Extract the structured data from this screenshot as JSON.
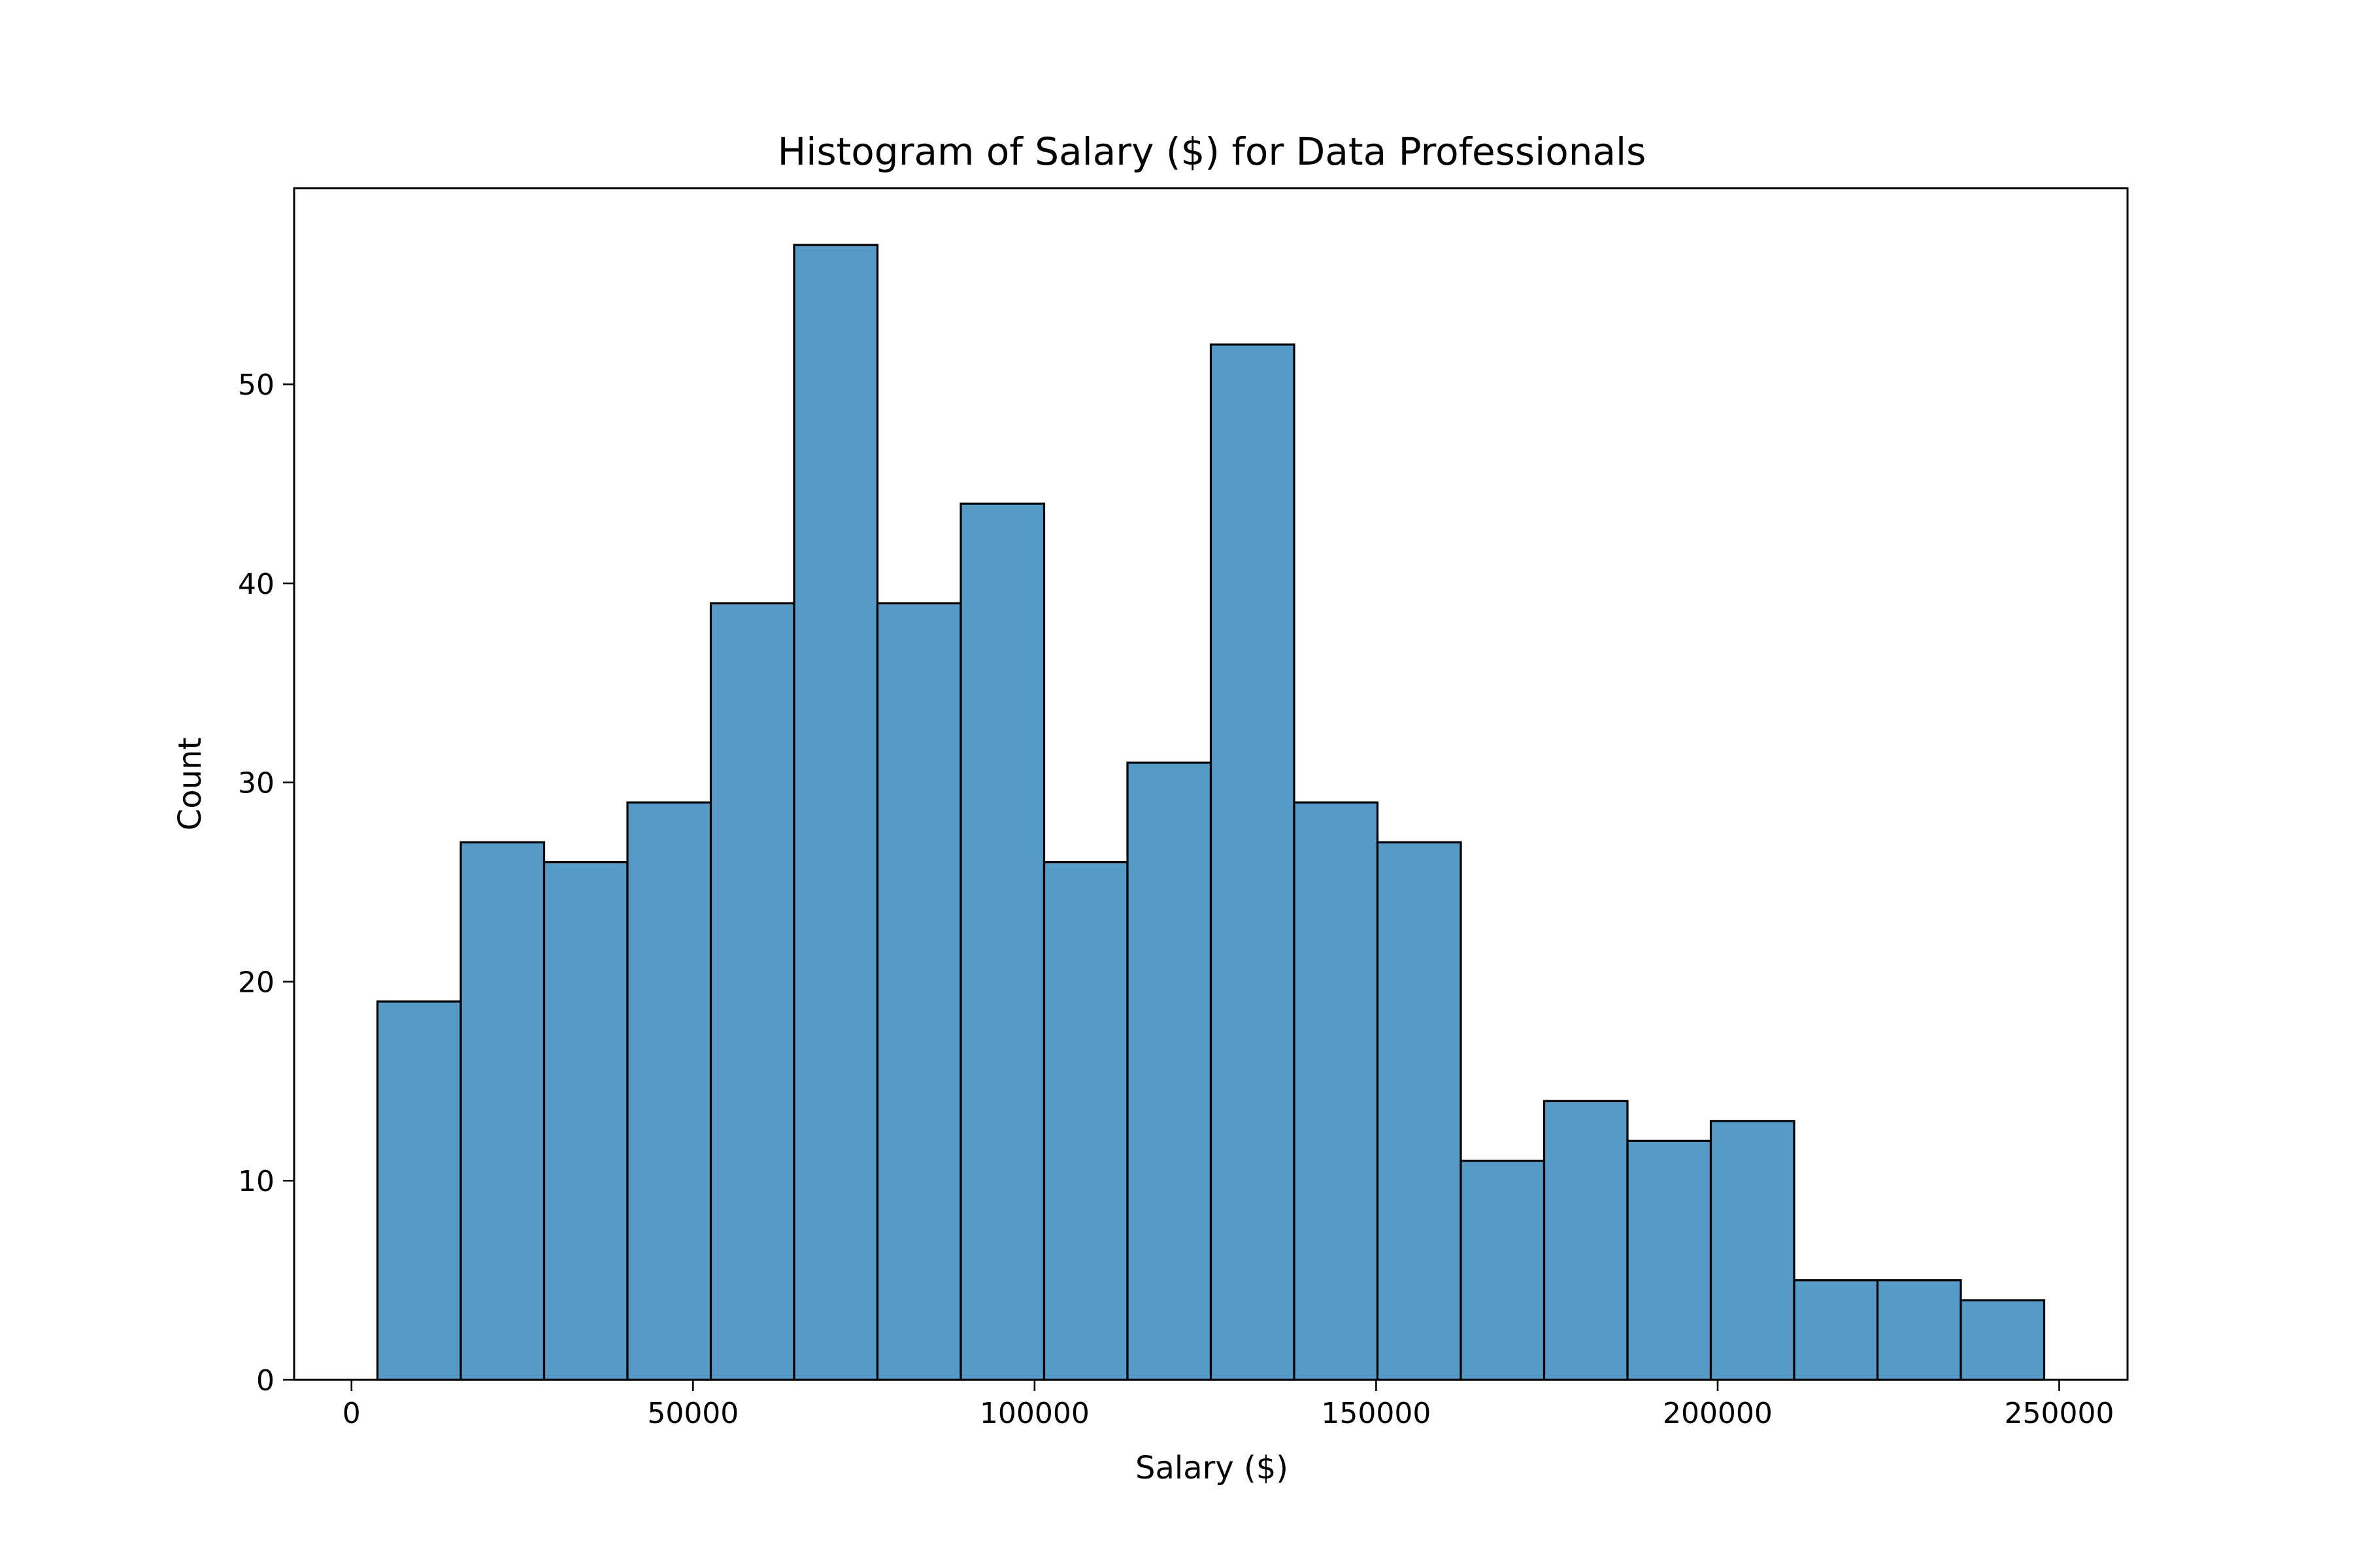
{
  "chart_data": {
    "type": "bar",
    "subtype": "histogram",
    "title": "Histogram of Salary ($) for Data Professionals",
    "xlabel": "Salary ($)",
    "ylabel": "Count",
    "bin_edges": [
      3800,
      16000,
      28200,
      40400,
      52600,
      64800,
      77000,
      89200,
      101400,
      113600,
      125800,
      138000,
      150200,
      162400,
      174600,
      186800,
      199000,
      211200,
      223400,
      235600,
      247800
    ],
    "values": [
      19,
      27,
      26,
      29,
      39,
      57,
      39,
      44,
      26,
      31,
      52,
      29,
      27,
      11,
      14,
      12,
      13,
      5,
      5,
      4
    ],
    "xlim": [
      -8400,
      260000
    ],
    "ylim": [
      0,
      59.85
    ],
    "xticks": [
      0,
      50000,
      100000,
      150000,
      200000,
      250000
    ],
    "xtick_labels": [
      "0",
      "50000",
      "100000",
      "150000",
      "200000",
      "250000"
    ],
    "yticks": [
      0,
      10,
      20,
      30,
      40,
      50
    ],
    "ytick_labels": [
      "0",
      "10",
      "20",
      "30",
      "40",
      "50"
    ],
    "grid": false,
    "bar_color": "#5799c7",
    "edge_color": "#000000"
  }
}
